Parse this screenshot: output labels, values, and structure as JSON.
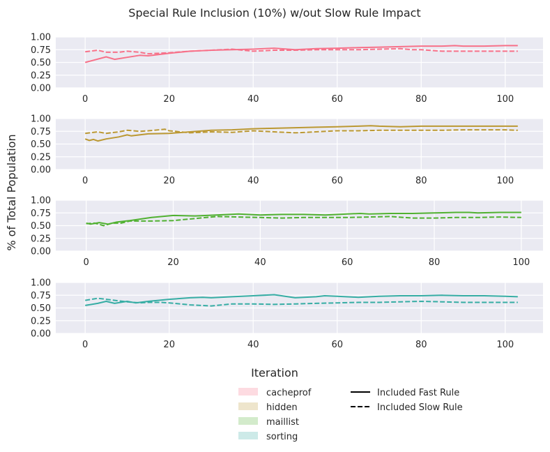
{
  "figure": {
    "title": "Special Rule Inclusion (10%) w/out Slow Rule Impact",
    "ylabel": "% of Total Population",
    "xlabel": "Iteration"
  },
  "legend": {
    "categories": [
      {
        "label": "cacheprof",
        "color": "#f77189"
      },
      {
        "label": "hidden",
        "color": "#bb9832"
      },
      {
        "label": "maillist",
        "color": "#50b131"
      },
      {
        "label": "sorting",
        "color": "#36ada4"
      }
    ],
    "styles": [
      {
        "label": "Included Fast Rule",
        "dash": "solid"
      },
      {
        "label": "Included Slow Rule",
        "dash": "dashed"
      }
    ]
  },
  "chart_data": [
    {
      "type": "line",
      "xlim": [
        -7,
        109
      ],
      "ylim": [
        0,
        1
      ],
      "xticks": [
        0,
        20,
        40,
        60,
        80,
        100
      ],
      "yticks": [
        "0.00",
        "0.25",
        "0.50",
        "0.75",
        "1.00"
      ],
      "grid": true,
      "color": "#f77189",
      "series": [
        {
          "style": "solid",
          "x": [
            0,
            5,
            7,
            10,
            13,
            15,
            20,
            25,
            30,
            35,
            40,
            45,
            50,
            55,
            60,
            65,
            70,
            75,
            80,
            85,
            88,
            90,
            95,
            100,
            103
          ],
          "y": [
            0.5,
            0.61,
            0.56,
            0.6,
            0.64,
            0.63,
            0.68,
            0.72,
            0.74,
            0.75,
            0.76,
            0.78,
            0.75,
            0.77,
            0.78,
            0.79,
            0.8,
            0.81,
            0.82,
            0.82,
            0.83,
            0.82,
            0.82,
            0.83,
            0.83
          ]
        },
        {
          "style": "dashed",
          "x": [
            0,
            3,
            5,
            8,
            10,
            13,
            15,
            20,
            25,
            30,
            35,
            40,
            45,
            50,
            55,
            60,
            65,
            70,
            75,
            78,
            80,
            85,
            90,
            95,
            100,
            103
          ],
          "y": [
            0.71,
            0.74,
            0.7,
            0.7,
            0.72,
            0.7,
            0.67,
            0.69,
            0.72,
            0.74,
            0.76,
            0.72,
            0.74,
            0.74,
            0.75,
            0.75,
            0.75,
            0.76,
            0.77,
            0.75,
            0.75,
            0.72,
            0.72,
            0.72,
            0.72,
            0.72
          ]
        }
      ]
    },
    {
      "type": "line",
      "xlim": [
        -7,
        109
      ],
      "ylim": [
        0,
        1
      ],
      "xticks": [
        0,
        20,
        40,
        60,
        80,
        100
      ],
      "yticks": [
        "0.00",
        "0.25",
        "0.50",
        "0.75",
        "1.00"
      ],
      "grid": true,
      "color": "#bb9832",
      "series": [
        {
          "style": "solid",
          "x": [
            0,
            1,
            2,
            3,
            5,
            8,
            10,
            11,
            15,
            20,
            25,
            30,
            35,
            40,
            45,
            50,
            55,
            60,
            65,
            68,
            70,
            75,
            80,
            85,
            90,
            95,
            100,
            103
          ],
          "y": [
            0.6,
            0.57,
            0.59,
            0.56,
            0.6,
            0.64,
            0.68,
            0.66,
            0.7,
            0.71,
            0.74,
            0.77,
            0.78,
            0.8,
            0.81,
            0.82,
            0.83,
            0.84,
            0.85,
            0.86,
            0.85,
            0.84,
            0.85,
            0.85,
            0.85,
            0.85,
            0.85,
            0.85
          ]
        },
        {
          "style": "dashed",
          "x": [
            0,
            3,
            5,
            8,
            10,
            13,
            15,
            19,
            20,
            25,
            30,
            35,
            40,
            45,
            50,
            55,
            60,
            65,
            70,
            75,
            80,
            85,
            90,
            95,
            100,
            103
          ],
          "y": [
            0.71,
            0.74,
            0.71,
            0.74,
            0.77,
            0.75,
            0.76,
            0.79,
            0.76,
            0.72,
            0.74,
            0.73,
            0.76,
            0.74,
            0.72,
            0.74,
            0.76,
            0.76,
            0.77,
            0.77,
            0.77,
            0.77,
            0.78,
            0.78,
            0.78,
            0.77
          ]
        }
      ]
    },
    {
      "type": "line",
      "xlim": [
        -7,
        105
      ],
      "ylim": [
        0,
        1
      ],
      "xticks": [
        0,
        20,
        40,
        60,
        80,
        100
      ],
      "yticks": [
        "0.00",
        "0.25",
        "0.50",
        "0.75",
        "1.00"
      ],
      "grid": true,
      "color": "#50b131",
      "series": [
        {
          "style": "solid",
          "x": [
            0,
            1,
            3,
            5,
            7,
            10,
            15,
            20,
            25,
            30,
            35,
            40,
            45,
            50,
            55,
            60,
            63,
            65,
            70,
            75,
            80,
            85,
            88,
            90,
            95,
            100
          ],
          "y": [
            0.55,
            0.53,
            0.56,
            0.53,
            0.57,
            0.6,
            0.66,
            0.7,
            0.69,
            0.71,
            0.73,
            0.71,
            0.72,
            0.72,
            0.71,
            0.73,
            0.74,
            0.73,
            0.74,
            0.74,
            0.75,
            0.76,
            0.76,
            0.75,
            0.76,
            0.76
          ]
        },
        {
          "style": "dashed",
          "x": [
            0,
            2,
            4,
            6,
            8,
            10,
            15,
            20,
            25,
            30,
            35,
            40,
            45,
            50,
            55,
            60,
            65,
            70,
            75,
            80,
            85,
            90,
            95,
            100
          ],
          "y": [
            0.54,
            0.55,
            0.5,
            0.55,
            0.55,
            0.59,
            0.59,
            0.6,
            0.64,
            0.68,
            0.67,
            0.66,
            0.65,
            0.66,
            0.66,
            0.66,
            0.67,
            0.68,
            0.65,
            0.65,
            0.66,
            0.66,
            0.67,
            0.66
          ]
        }
      ]
    },
    {
      "type": "line",
      "xlim": [
        -7,
        109
      ],
      "ylim": [
        0,
        1
      ],
      "xticks": [
        0,
        20,
        40,
        60,
        80,
        100
      ],
      "yticks": [
        "0.00",
        "0.25",
        "0.50",
        "0.75",
        "1.00"
      ],
      "grid": true,
      "color": "#36ada4",
      "series": [
        {
          "style": "solid",
          "x": [
            0,
            3,
            5,
            7,
            10,
            12,
            15,
            20,
            25,
            28,
            30,
            35,
            40,
            45,
            50,
            55,
            57,
            60,
            65,
            70,
            75,
            80,
            85,
            90,
            95,
            100,
            103
          ],
          "y": [
            0.55,
            0.59,
            0.63,
            0.59,
            0.63,
            0.6,
            0.63,
            0.67,
            0.7,
            0.71,
            0.7,
            0.72,
            0.74,
            0.76,
            0.7,
            0.72,
            0.74,
            0.73,
            0.71,
            0.73,
            0.74,
            0.74,
            0.75,
            0.74,
            0.74,
            0.73,
            0.72
          ]
        },
        {
          "style": "dashed",
          "x": [
            0,
            3,
            5,
            8,
            10,
            13,
            15,
            18,
            20,
            25,
            30,
            35,
            40,
            45,
            50,
            55,
            60,
            65,
            70,
            75,
            80,
            85,
            90,
            95,
            100,
            103
          ],
          "y": [
            0.65,
            0.69,
            0.67,
            0.64,
            0.62,
            0.6,
            0.61,
            0.61,
            0.6,
            0.56,
            0.54,
            0.58,
            0.58,
            0.57,
            0.58,
            0.59,
            0.6,
            0.61,
            0.61,
            0.62,
            0.63,
            0.62,
            0.61,
            0.61,
            0.61,
            0.61
          ]
        }
      ]
    }
  ]
}
